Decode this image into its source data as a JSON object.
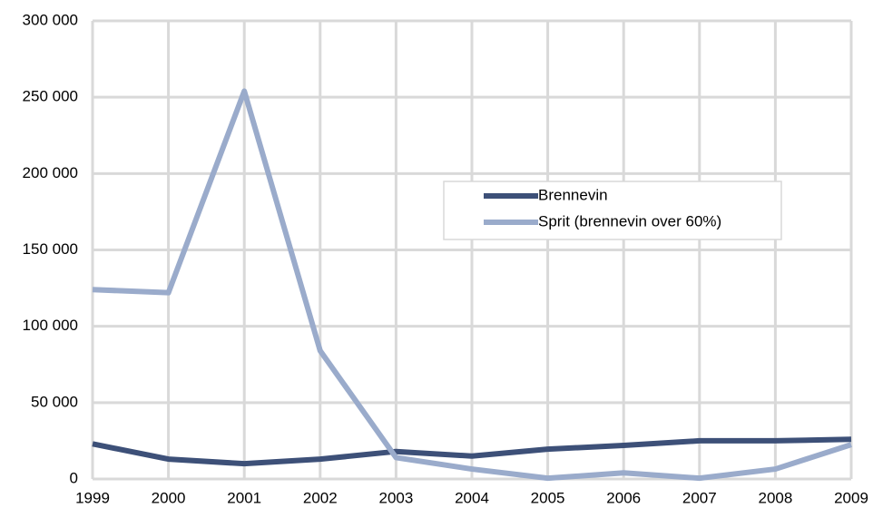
{
  "chart_data": {
    "type": "line",
    "categories": [
      "1999",
      "2000",
      "2001",
      "2002",
      "2003",
      "2004",
      "2005",
      "2006",
      "2007",
      "2008",
      "2009"
    ],
    "series": [
      {
        "name": "Brennevin",
        "color": "#3d5078",
        "values": [
          23000,
          13000,
          10000,
          13000,
          18000,
          15000,
          19500,
          22000,
          25000,
          25000,
          26000
        ]
      },
      {
        "name": "Sprit (brennevin over 60%)",
        "color": "#9aabcb",
        "values": [
          124000,
          122000,
          254000,
          84000,
          14000,
          6500,
          500,
          4000,
          500,
          6500,
          22500
        ]
      }
    ],
    "ylim": [
      0,
      300000
    ],
    "yticks": [
      0,
      {
        "value": 50000,
        "label": "50 000"
      },
      {
        "value": 100000,
        "label": "100 000"
      },
      {
        "value": 150000,
        "label": "150 000"
      },
      {
        "value": 200000,
        "label": "200 000"
      },
      {
        "value": 250000,
        "label": "250 000"
      },
      {
        "value": 300000,
        "label": "300 000"
      }
    ],
    "grid": true
  }
}
